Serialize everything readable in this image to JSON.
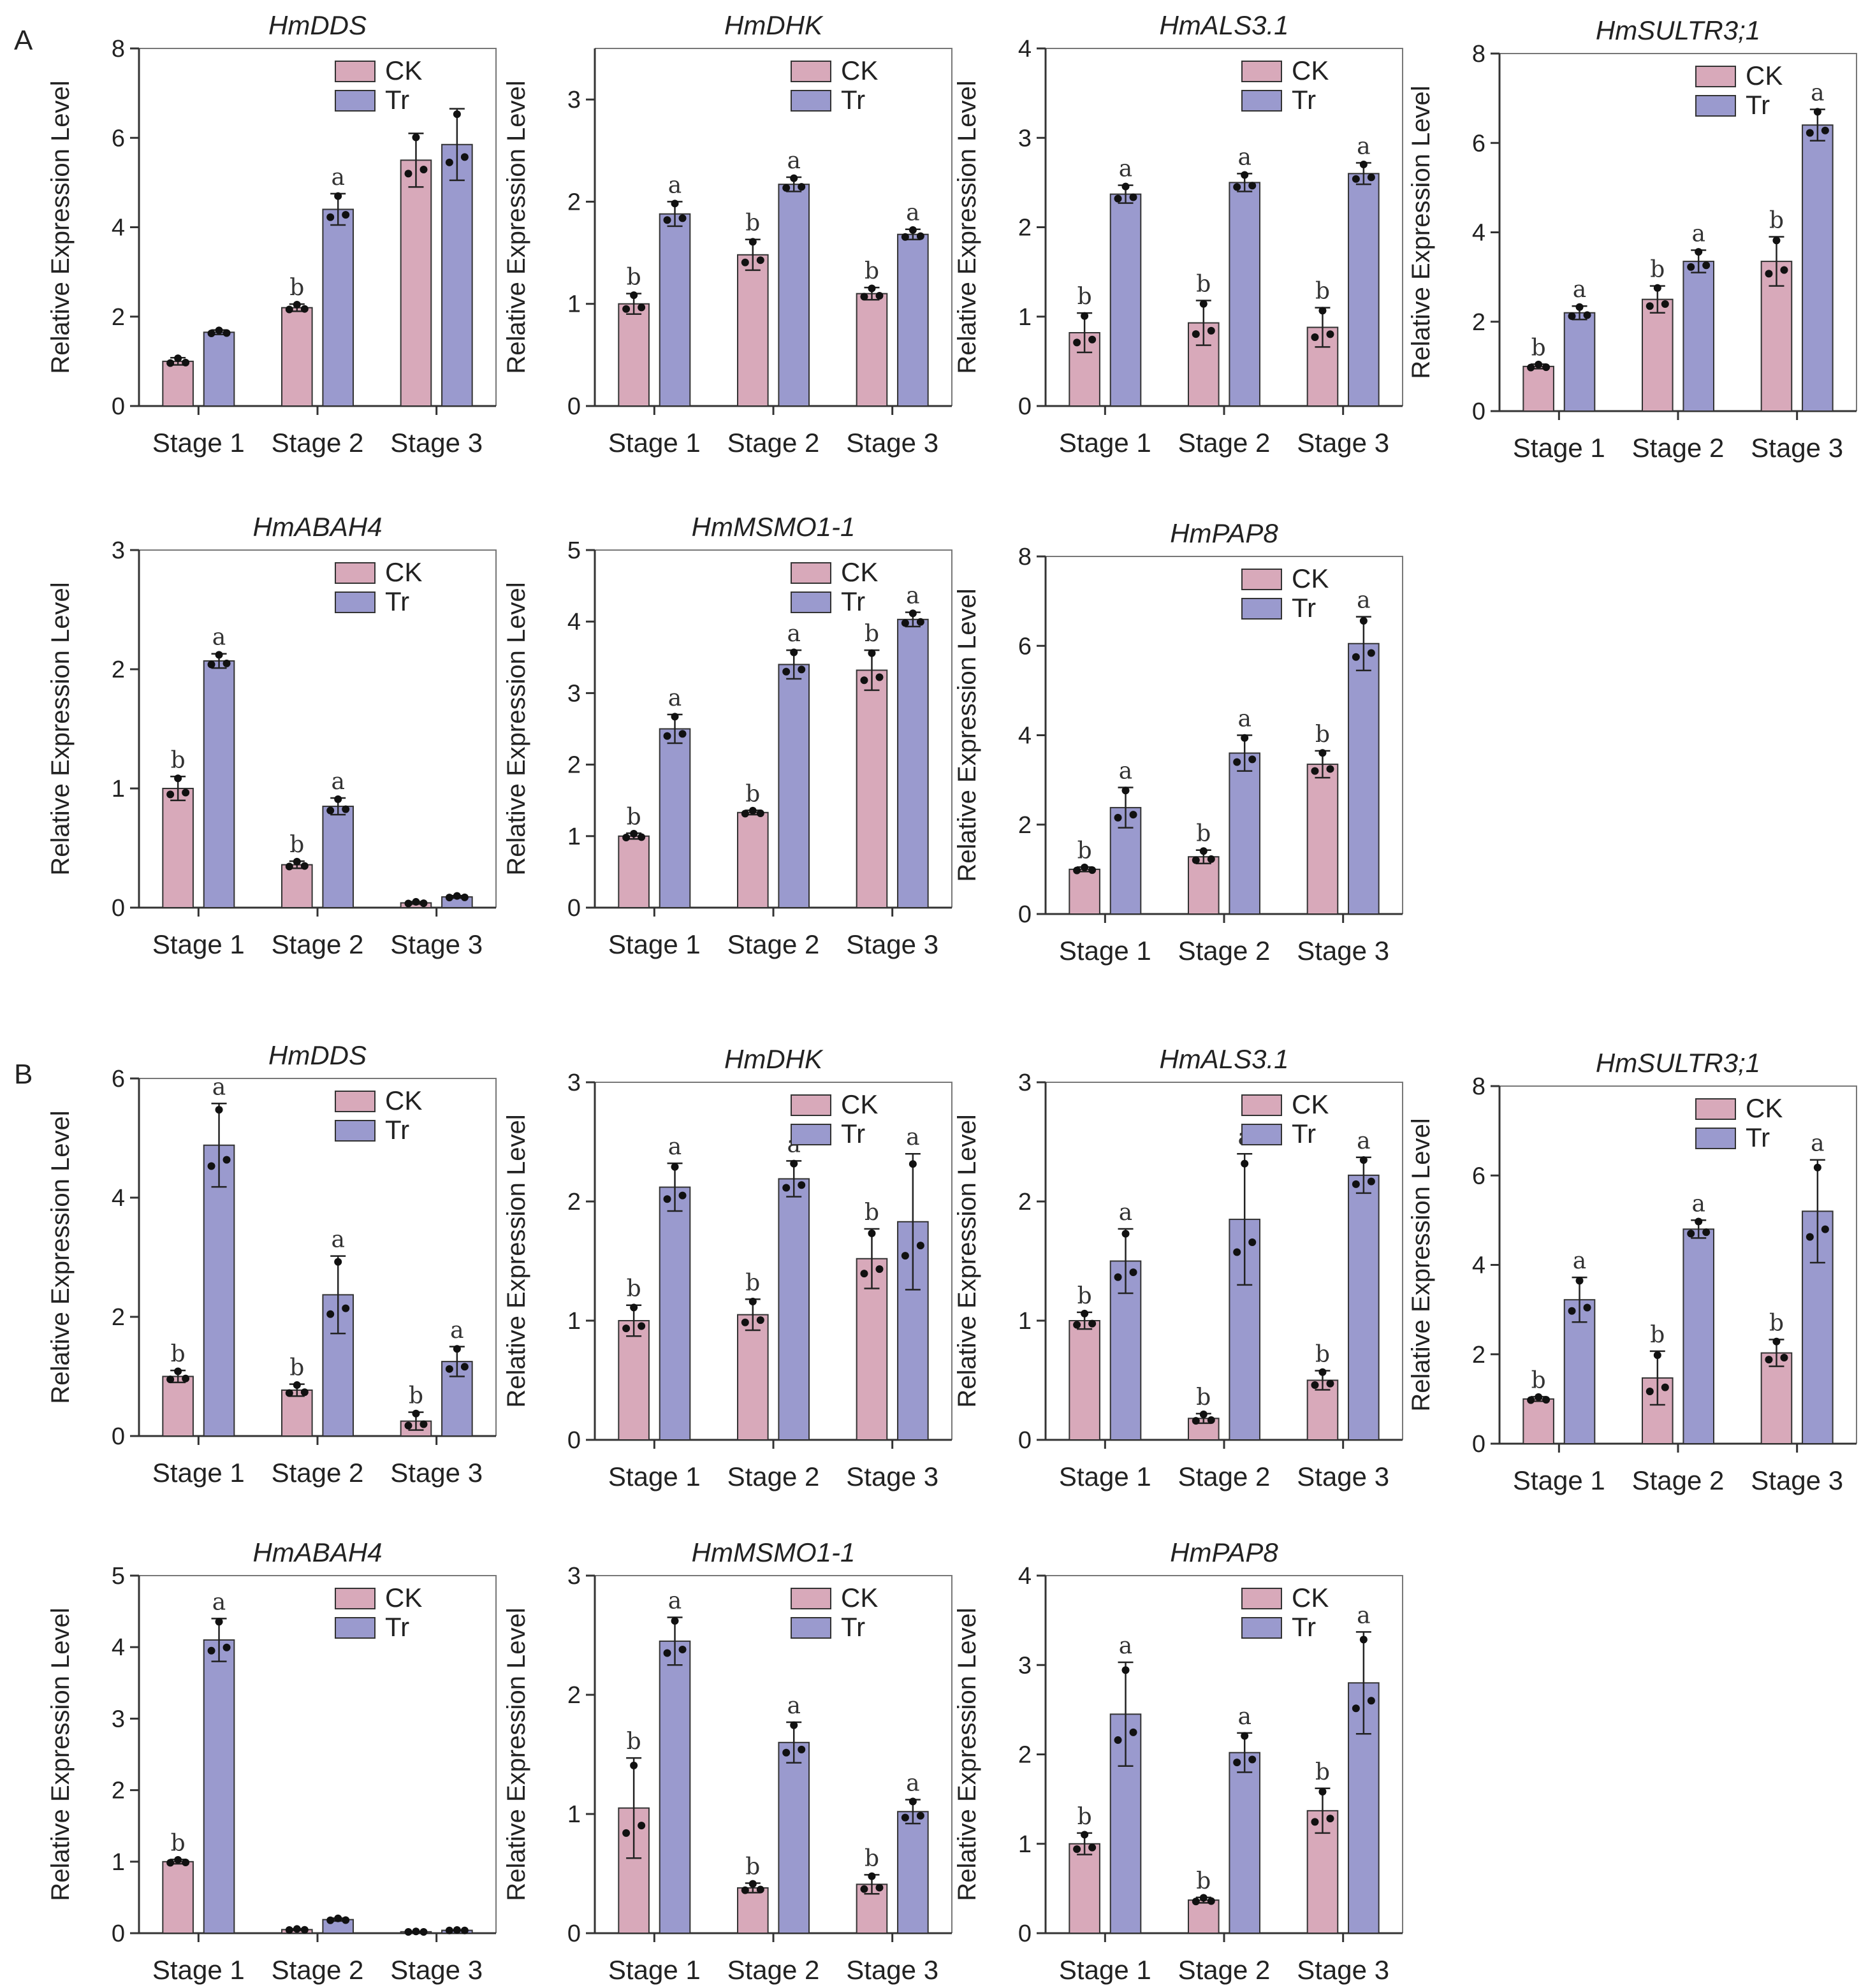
{
  "figure": {
    "panels": [
      "A",
      "B"
    ],
    "colors": {
      "ck": "#D8A9BA",
      "tr": "#9A9ACE",
      "axis": "#333333",
      "dots": "#111111"
    }
  },
  "chart_data": [
    {
      "panel": "A",
      "type": "bar",
      "title": "HmDDS",
      "ylabel": "Relative Expression Level",
      "ylim": [
        0,
        8
      ],
      "yticks": [
        0,
        2,
        4,
        6,
        8
      ],
      "categories": [
        "Stage 1",
        "Stage 2",
        "Stage 3"
      ],
      "legend": [
        "CK",
        "Tr"
      ],
      "legend_position": "top-right",
      "series": [
        {
          "name": "CK",
          "values": [
            1.0,
            2.2,
            5.5
          ],
          "errors": [
            0.08,
            0.08,
            0.6
          ],
          "letters": [
            "",
            "b",
            ""
          ]
        },
        {
          "name": "Tr",
          "values": [
            1.65,
            4.4,
            5.85
          ],
          "errors": [
            0.05,
            0.35,
            0.8
          ],
          "letters": [
            "",
            "a",
            ""
          ]
        }
      ]
    },
    {
      "panel": "A",
      "type": "bar",
      "title": "HmDHK",
      "ylabel": "Relative Expression Level",
      "ylim": [
        0,
        3.5
      ],
      "yticks": [
        0,
        1,
        2,
        3
      ],
      "categories": [
        "Stage 1",
        "Stage 2",
        "Stage 3"
      ],
      "legend": [
        "CK",
        "Tr"
      ],
      "legend_position": "top-right",
      "series": [
        {
          "name": "CK",
          "values": [
            1.0,
            1.48,
            1.1
          ],
          "errors": [
            0.1,
            0.15,
            0.06
          ],
          "letters": [
            "b",
            "b",
            "b"
          ]
        },
        {
          "name": "Tr",
          "values": [
            1.88,
            2.17,
            1.68
          ],
          "errors": [
            0.12,
            0.07,
            0.05
          ],
          "letters": [
            "a",
            "a",
            "a"
          ]
        }
      ]
    },
    {
      "panel": "A",
      "type": "bar",
      "title": "HmALS3.1",
      "ylabel": "Relative Expression Level",
      "ylim": [
        0,
        4
      ],
      "yticks": [
        0,
        1,
        2,
        3,
        4
      ],
      "categories": [
        "Stage 1",
        "Stage 2",
        "Stage 3"
      ],
      "legend": [
        "CK",
        "Tr"
      ],
      "legend_position": "top-right",
      "series": [
        {
          "name": "CK",
          "values": [
            0.82,
            0.93,
            0.88
          ],
          "errors": [
            0.22,
            0.25,
            0.22
          ],
          "letters": [
            "b",
            "b",
            "b"
          ]
        },
        {
          "name": "Tr",
          "values": [
            2.37,
            2.5,
            2.6
          ],
          "errors": [
            0.1,
            0.1,
            0.12
          ],
          "letters": [
            "a",
            "a",
            "a"
          ]
        }
      ]
    },
    {
      "panel": "A",
      "type": "bar",
      "title": "HmSULTR3;1",
      "ylabel": "Relative Expression Level",
      "ylim": [
        0,
        8
      ],
      "yticks": [
        0,
        2,
        4,
        6,
        8
      ],
      "categories": [
        "Stage 1",
        "Stage 2",
        "Stage 3"
      ],
      "legend": [
        "CK",
        "Tr"
      ],
      "legend_position": "top-right",
      "series": [
        {
          "name": "CK",
          "values": [
            1.0,
            2.5,
            3.35
          ],
          "errors": [
            0.05,
            0.3,
            0.55
          ],
          "letters": [
            "b",
            "b",
            "b"
          ]
        },
        {
          "name": "Tr",
          "values": [
            2.2,
            3.35,
            6.4
          ],
          "errors": [
            0.15,
            0.25,
            0.35
          ],
          "letters": [
            "a",
            "a",
            "a"
          ]
        }
      ]
    },
    {
      "panel": "A",
      "type": "bar",
      "title": "HmABAH4",
      "ylabel": "Relative Expression Level",
      "ylim": [
        0,
        3
      ],
      "yticks": [
        0,
        1,
        2,
        3
      ],
      "categories": [
        "Stage 1",
        "Stage 2",
        "Stage 3"
      ],
      "legend": [
        "CK",
        "Tr"
      ],
      "legend_position": "top-right",
      "series": [
        {
          "name": "CK",
          "values": [
            1.0,
            0.36,
            0.04
          ],
          "errors": [
            0.1,
            0.03,
            0.01
          ],
          "letters": [
            "b",
            "b",
            ""
          ]
        },
        {
          "name": "Tr",
          "values": [
            2.07,
            0.85,
            0.09
          ],
          "errors": [
            0.06,
            0.07,
            0.01
          ],
          "letters": [
            "a",
            "a",
            ""
          ]
        }
      ]
    },
    {
      "panel": "A",
      "type": "bar",
      "title": "HmMSMO1-1",
      "ylabel": "Relative Expression Level",
      "ylim": [
        0,
        5
      ],
      "yticks": [
        0,
        1,
        2,
        3,
        4,
        5
      ],
      "categories": [
        "Stage 1",
        "Stage 2",
        "Stage 3"
      ],
      "legend": [
        "CK",
        "Tr"
      ],
      "legend_position": "top-right",
      "series": [
        {
          "name": "CK",
          "values": [
            1.0,
            1.33,
            3.32
          ],
          "errors": [
            0.04,
            0.03,
            0.28
          ],
          "letters": [
            "b",
            "b",
            "b"
          ]
        },
        {
          "name": "Tr",
          "values": [
            2.5,
            3.4,
            4.03
          ],
          "errors": [
            0.2,
            0.2,
            0.1
          ],
          "letters": [
            "a",
            "a",
            "a"
          ]
        }
      ]
    },
    {
      "panel": "A",
      "type": "bar",
      "title": "HmPAP8",
      "ylabel": "Relative Expression Level",
      "ylim": [
        0,
        8
      ],
      "yticks": [
        0,
        2,
        4,
        6,
        8
      ],
      "categories": [
        "Stage 1",
        "Stage 2",
        "Stage 3"
      ],
      "legend": [
        "CK",
        "Tr"
      ],
      "legend_position": "top-right",
      "series": [
        {
          "name": "CK",
          "values": [
            1.0,
            1.28,
            3.35
          ],
          "errors": [
            0.05,
            0.15,
            0.3
          ],
          "letters": [
            "b",
            "b",
            "b"
          ]
        },
        {
          "name": "Tr",
          "values": [
            2.38,
            3.6,
            6.05
          ],
          "errors": [
            0.45,
            0.4,
            0.6
          ],
          "letters": [
            "a",
            "a",
            "a"
          ]
        }
      ]
    },
    {
      "panel": "B",
      "type": "bar",
      "title": "HmDDS",
      "ylabel": "Relative Expression Level",
      "ylim": [
        0,
        6
      ],
      "yticks": [
        0,
        2,
        4,
        6
      ],
      "categories": [
        "Stage 1",
        "Stage 2",
        "Stage 3"
      ],
      "legend": [
        "CK",
        "Tr"
      ],
      "legend_position": "top-right",
      "series": [
        {
          "name": "CK",
          "values": [
            1.0,
            0.77,
            0.25
          ],
          "errors": [
            0.1,
            0.1,
            0.15
          ],
          "letters": [
            "b",
            "b",
            "b"
          ]
        },
        {
          "name": "Tr",
          "values": [
            4.88,
            2.37,
            1.25
          ],
          "errors": [
            0.7,
            0.65,
            0.25
          ],
          "letters": [
            "a",
            "a",
            "a"
          ]
        }
      ]
    },
    {
      "panel": "B",
      "type": "bar",
      "title": "HmDHK",
      "ylabel": "Relative Expression Level",
      "ylim": [
        0,
        3
      ],
      "yticks": [
        0,
        1,
        2,
        3
      ],
      "categories": [
        "Stage 1",
        "Stage 2",
        "Stage 3"
      ],
      "legend": [
        "CK",
        "Tr"
      ],
      "legend_position": "top-right",
      "series": [
        {
          "name": "CK",
          "values": [
            1.0,
            1.05,
            1.52
          ],
          "errors": [
            0.13,
            0.13,
            0.25
          ],
          "letters": [
            "b",
            "b",
            "b"
          ]
        },
        {
          "name": "Tr",
          "values": [
            2.12,
            2.19,
            1.83
          ],
          "errors": [
            0.2,
            0.15,
            0.57
          ],
          "letters": [
            "a",
            "a",
            "a"
          ]
        }
      ]
    },
    {
      "panel": "B",
      "type": "bar",
      "title": "HmALS3.1",
      "ylabel": "Relative Expression Level",
      "ylim": [
        0,
        3
      ],
      "yticks": [
        0,
        1,
        2,
        3
      ],
      "categories": [
        "Stage 1",
        "Stage 2",
        "Stage 3"
      ],
      "legend": [
        "CK",
        "Tr"
      ],
      "legend_position": "top-right",
      "series": [
        {
          "name": "CK",
          "values": [
            1.0,
            0.18,
            0.5
          ],
          "errors": [
            0.07,
            0.04,
            0.08
          ],
          "letters": [
            "b",
            "b",
            "b"
          ]
        },
        {
          "name": "Tr",
          "values": [
            1.5,
            1.85,
            2.22
          ],
          "errors": [
            0.27,
            0.55,
            0.15
          ],
          "letters": [
            "a",
            "a",
            "a"
          ]
        }
      ]
    },
    {
      "panel": "B",
      "type": "bar",
      "title": "HmSULTR3;1",
      "ylabel": "Relative Expression Level",
      "ylim": [
        0,
        8
      ],
      "yticks": [
        0,
        2,
        4,
        6,
        8
      ],
      "categories": [
        "Stage 1",
        "Stage 2",
        "Stage 3"
      ],
      "legend": [
        "CK",
        "Tr"
      ],
      "legend_position": "top-right",
      "series": [
        {
          "name": "CK",
          "values": [
            1.0,
            1.47,
            2.03
          ],
          "errors": [
            0.05,
            0.6,
            0.3
          ],
          "letters": [
            "b",
            "b",
            "b"
          ]
        },
        {
          "name": "Tr",
          "values": [
            3.22,
            4.8,
            5.2
          ],
          "errors": [
            0.5,
            0.2,
            1.15
          ],
          "letters": [
            "a",
            "a",
            "a"
          ]
        }
      ]
    },
    {
      "panel": "B",
      "type": "bar",
      "title": "HmABAH4",
      "ylabel": "Relative Expression Level",
      "ylim": [
        0,
        5
      ],
      "yticks": [
        0,
        1,
        2,
        3,
        4,
        5
      ],
      "categories": [
        "Stage 1",
        "Stage 2",
        "Stage 3"
      ],
      "legend": [
        "CK",
        "Tr"
      ],
      "legend_position": "top-right",
      "series": [
        {
          "name": "CK",
          "values": [
            1.0,
            0.05,
            0.02
          ],
          "errors": [
            0.03,
            0.01,
            0.005
          ],
          "letters": [
            "b",
            "",
            ""
          ]
        },
        {
          "name": "Tr",
          "values": [
            4.1,
            0.19,
            0.04
          ],
          "errors": [
            0.3,
            0.02,
            0.005
          ],
          "letters": [
            "a",
            "",
            ""
          ]
        }
      ]
    },
    {
      "panel": "B",
      "type": "bar",
      "title": "HmMSMO1-1",
      "ylabel": "Relative Expression Level",
      "ylim": [
        0,
        3
      ],
      "yticks": [
        0,
        1,
        2,
        3
      ],
      "categories": [
        "Stage 1",
        "Stage 2",
        "Stage 3"
      ],
      "legend": [
        "CK",
        "Tr"
      ],
      "legend_position": "top-right",
      "series": [
        {
          "name": "CK",
          "values": [
            1.05,
            0.38,
            0.41
          ],
          "errors": [
            0.42,
            0.04,
            0.08
          ],
          "letters": [
            "b",
            "b",
            "b"
          ]
        },
        {
          "name": "Tr",
          "values": [
            2.45,
            1.6,
            1.02
          ],
          "errors": [
            0.2,
            0.17,
            0.1
          ],
          "letters": [
            "a",
            "a",
            "a"
          ]
        }
      ]
    },
    {
      "panel": "B",
      "type": "bar",
      "title": "HmPAP8",
      "ylabel": "Relative Expression Level",
      "ylim": [
        0,
        4
      ],
      "yticks": [
        0,
        1,
        2,
        3,
        4
      ],
      "categories": [
        "Stage 1",
        "Stage 2",
        "Stage 3"
      ],
      "legend": [
        "CK",
        "Tr"
      ],
      "legend_position": "top-right",
      "series": [
        {
          "name": "CK",
          "values": [
            1.0,
            0.37,
            1.37
          ],
          "errors": [
            0.12,
            0.03,
            0.25
          ],
          "letters": [
            "b",
            "b",
            "b"
          ]
        },
        {
          "name": "Tr",
          "values": [
            2.45,
            2.02,
            2.8
          ],
          "errors": [
            0.58,
            0.22,
            0.57
          ],
          "letters": [
            "a",
            "a",
            "a"
          ]
        }
      ]
    }
  ]
}
